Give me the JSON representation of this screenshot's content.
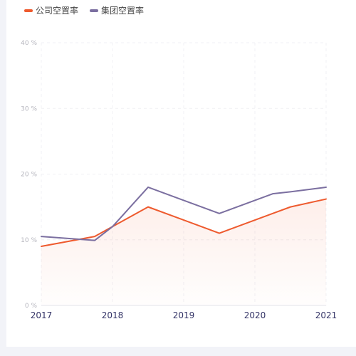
{
  "chart_data": {
    "type": "line",
    "x": [
      2017,
      2017.75,
      2018,
      2018.5,
      2019.5,
      2020.25,
      2020.5,
      2021
    ],
    "xlim": [
      2017,
      2021
    ],
    "xticks": [
      "2017",
      "2018",
      "2019",
      "2020",
      "2021"
    ],
    "ylim": [
      0,
      40
    ],
    "yticks": [
      "0 %",
      "10 %",
      "20 %",
      "30 %",
      "40 %"
    ],
    "grid": true,
    "legend": "top-left",
    "title": "",
    "xlabel": "",
    "ylabel": "",
    "series": [
      {
        "name": "公司空置率",
        "color": "#ee5a2e",
        "area": true,
        "values": [
          9.0,
          10.5,
          12.0,
          15.0,
          11.0,
          14.0,
          15.0,
          16.2
        ]
      },
      {
        "name": "集团空置率",
        "color": "#7b6fa0",
        "area": false,
        "values": [
          10.5,
          9.9,
          12.0,
          18.0,
          14.0,
          17.0,
          17.3,
          18.0
        ]
      }
    ]
  }
}
